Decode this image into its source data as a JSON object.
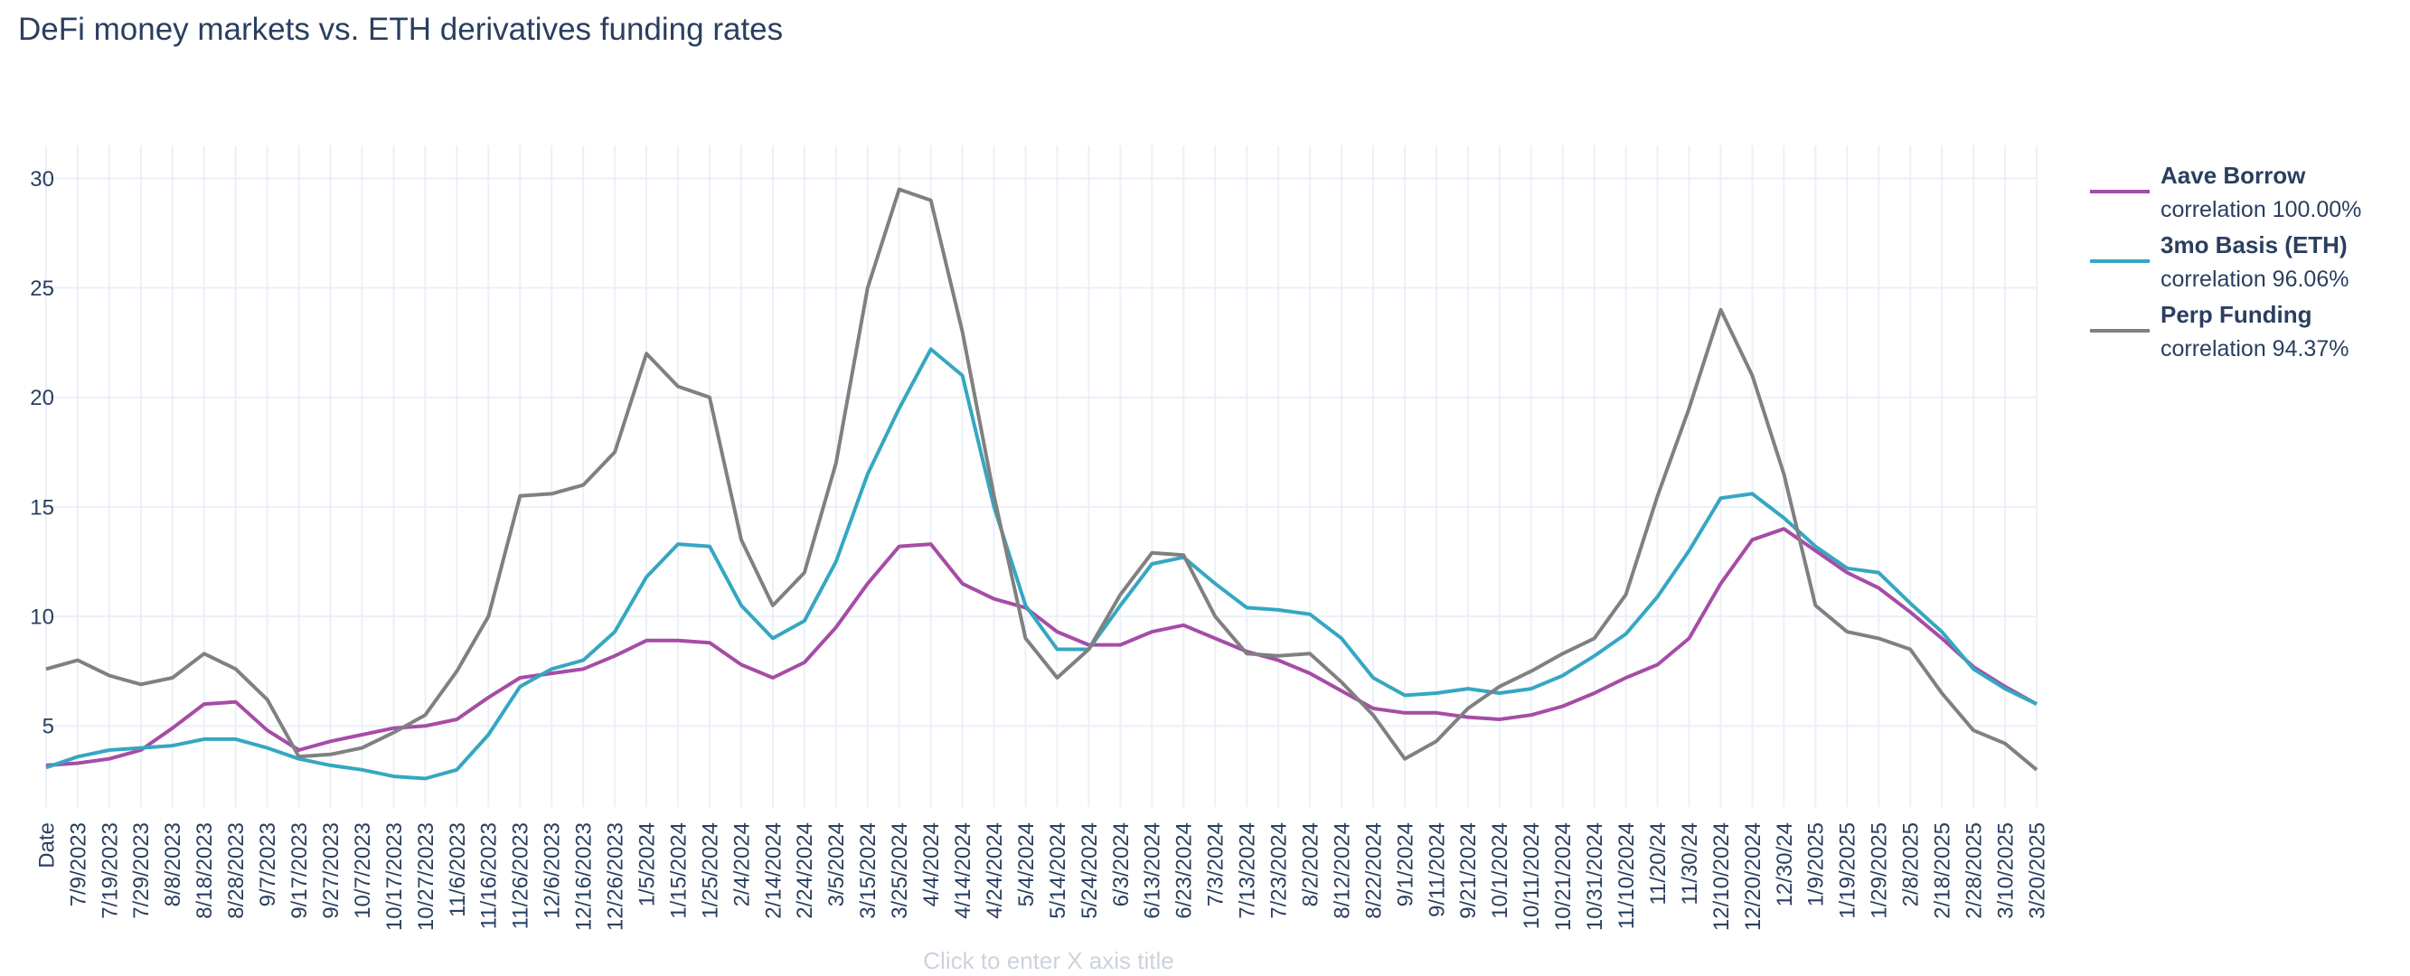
{
  "chart_data": {
    "type": "line",
    "title": "DeFi money markets vs. ETH derivatives funding rates",
    "x_axis_placeholder": "Click to enter X axis title",
    "categories": [
      "Date",
      "7/9/2023",
      "7/19/2023",
      "7/29/2023",
      "8/8/2023",
      "8/18/2023",
      "8/28/2023",
      "9/7/2023",
      "9/17/2023",
      "9/27/2023",
      "10/7/2023",
      "10/17/2023",
      "10/27/2023",
      "11/6/2023",
      "11/16/2023",
      "11/26/2023",
      "12/6/2023",
      "12/16/2023",
      "12/26/2023",
      "1/5/2024",
      "1/15/2024",
      "1/25/2024",
      "2/4/2024",
      "2/14/2024",
      "2/24/2024",
      "3/5/2024",
      "3/15/2024",
      "3/25/2024",
      "4/4/2024",
      "4/14/2024",
      "4/24/2024",
      "5/4/2024",
      "5/14/2024",
      "5/24/2024",
      "6/3/2024",
      "6/13/2024",
      "6/23/2024",
      "7/3/2024",
      "7/13/2024",
      "7/23/2024",
      "8/2/2024",
      "8/12/2024",
      "8/22/2024",
      "9/1/2024",
      "9/11/2024",
      "9/21/2024",
      "10/1/2024",
      "10/11/2024",
      "10/21/2024",
      "10/31/2024",
      "11/10/2024",
      "11/20/24",
      "11/30/24",
      "12/10/2024",
      "12/20/2024",
      "12/30/24",
      "1/9/2025",
      "1/19/2025",
      "1/29/2025",
      "2/8/2025",
      "2/18/2025",
      "2/28/2025",
      "3/10/2025",
      "3/20/2025"
    ],
    "series": [
      {
        "name": "Aave Borrow",
        "legend_note": "correlation 100.00%",
        "color": "#a64ca6",
        "values": [
          3.2,
          3.3,
          3.5,
          3.9,
          4.9,
          6.0,
          6.1,
          4.8,
          3.9,
          4.3,
          4.6,
          4.9,
          5.0,
          5.3,
          6.3,
          7.2,
          7.4,
          7.6,
          8.2,
          8.9,
          8.9,
          8.8,
          7.8,
          7.2,
          7.9,
          9.5,
          11.5,
          13.2,
          13.3,
          11.5,
          10.8,
          10.4,
          9.3,
          8.7,
          8.7,
          9.3,
          9.6,
          9.0,
          8.4,
          8.0,
          7.4,
          6.6,
          5.8,
          5.6,
          5.6,
          5.4,
          5.3,
          5.5,
          5.9,
          6.5,
          7.2,
          7.8,
          9.0,
          11.5,
          13.5,
          14.0,
          13.0,
          12.0,
          11.3,
          10.2,
          9.0,
          7.7,
          6.8,
          6.0
        ]
      },
      {
        "name": "3mo Basis (ETH)",
        "legend_note": "correlation 96.06%",
        "color": "#35a7c1",
        "values": [
          3.1,
          3.6,
          3.9,
          4.0,
          4.1,
          4.4,
          4.4,
          4.0,
          3.5,
          3.2,
          3.0,
          2.7,
          2.6,
          3.0,
          4.6,
          6.8,
          7.6,
          8.0,
          9.3,
          11.8,
          13.3,
          13.2,
          10.5,
          9.0,
          9.8,
          12.5,
          16.5,
          19.5,
          22.2,
          21.0,
          15.0,
          10.5,
          8.5,
          8.5,
          10.5,
          12.4,
          12.7,
          11.5,
          10.4,
          10.3,
          10.1,
          9.0,
          7.2,
          6.4,
          6.5,
          6.7,
          6.5,
          6.7,
          7.3,
          8.2,
          9.2,
          10.9,
          13.0,
          15.4,
          15.6,
          14.5,
          13.2,
          12.2,
          12.0,
          10.6,
          9.3,
          7.6,
          6.7,
          6.0
        ]
      },
      {
        "name": "Perp Funding",
        "legend_note": "correlation 94.37%",
        "color": "#808080",
        "values": [
          7.6,
          8.0,
          7.3,
          6.9,
          7.2,
          8.3,
          7.6,
          6.2,
          3.6,
          3.7,
          4.0,
          4.7,
          5.5,
          7.5,
          10.0,
          15.5,
          15.6,
          16.0,
          17.5,
          22.0,
          20.5,
          20.0,
          13.5,
          10.5,
          12.0,
          17.0,
          25.0,
          29.5,
          29.0,
          23.0,
          15.5,
          9.0,
          7.2,
          8.5,
          11.0,
          12.9,
          12.8,
          10.0,
          8.3,
          8.2,
          8.3,
          7.0,
          5.5,
          3.5,
          4.3,
          5.8,
          6.8,
          7.5,
          8.3,
          9.0,
          11.0,
          15.5,
          19.5,
          24.0,
          21.0,
          16.5,
          10.5,
          9.3,
          9.0,
          8.5,
          6.5,
          4.8,
          4.2,
          3.0
        ]
      }
    ],
    "ylim": [
      1.3,
      31.5
    ],
    "yticks": [
      5,
      10,
      15,
      20,
      25,
      30
    ],
    "grid": true
  }
}
